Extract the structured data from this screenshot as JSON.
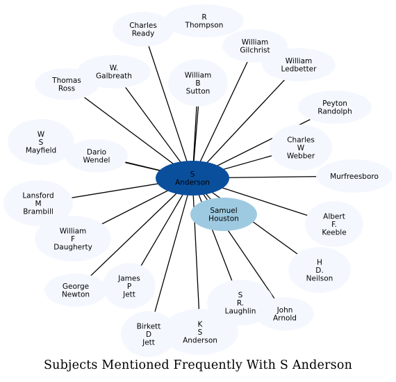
{
  "title": "Subjects Mentioned Frequently With S Anderson",
  "colors": {
    "center_fill": "#0a4f9c",
    "secondary_fill": "#9ecae1",
    "node_fill": "#f4f8fe",
    "edge": "#000000"
  },
  "center": {
    "id": "s-anderson",
    "lines": [
      "S",
      "Anderson"
    ]
  },
  "secondary": {
    "id": "samuel-houston",
    "lines": [
      "Samuel",
      "Houston"
    ]
  },
  "nodes": [
    {
      "id": "r-thompson",
      "lines": [
        "R",
        "Thompson"
      ]
    },
    {
      "id": "charles-ready",
      "lines": [
        "Charles",
        "Ready"
      ]
    },
    {
      "id": "william-gilchrist",
      "lines": [
        "William",
        "Gilchrist"
      ]
    },
    {
      "id": "w-galbreath",
      "lines": [
        "W.",
        "Galbreath"
      ]
    },
    {
      "id": "william-ledbetter",
      "lines": [
        "William",
        "Ledbetter"
      ]
    },
    {
      "id": "thomas-ross",
      "lines": [
        "Thomas",
        "Ross"
      ]
    },
    {
      "id": "william-b-sutton",
      "lines": [
        "William",
        "B",
        "Sutton"
      ]
    },
    {
      "id": "peyton-randolph",
      "lines": [
        "Peyton",
        "Randolph"
      ]
    },
    {
      "id": "w-s-mayfield",
      "lines": [
        "W",
        "S",
        "Mayfield"
      ]
    },
    {
      "id": "charles-w-webber",
      "lines": [
        "Charles",
        "W",
        "Webber"
      ]
    },
    {
      "id": "dario-wendel",
      "lines": [
        "Dario",
        "Wendel"
      ]
    },
    {
      "id": "murfreesboro",
      "lines": [
        "Murfreesboro"
      ]
    },
    {
      "id": "lansford-m-brambill",
      "lines": [
        "Lansford",
        "M",
        "Brambill"
      ]
    },
    {
      "id": "albert-f-keeble",
      "lines": [
        "Albert",
        "F.",
        "Keeble"
      ]
    },
    {
      "id": "william-f-daugherty",
      "lines": [
        "William",
        "F",
        "Daugherty"
      ]
    },
    {
      "id": "h-d-neilson",
      "lines": [
        "H",
        "D.",
        "Neilson"
      ]
    },
    {
      "id": "james-p-jett",
      "lines": [
        "James",
        "P",
        "Jett"
      ]
    },
    {
      "id": "george-newton",
      "lines": [
        "George",
        "Newton"
      ]
    },
    {
      "id": "s-r-laughlin",
      "lines": [
        "S",
        "R.",
        "Laughlin"
      ]
    },
    {
      "id": "john-arnold",
      "lines": [
        "John",
        "Arnold"
      ]
    },
    {
      "id": "birkett-d-jett",
      "lines": [
        "Birkett",
        "D",
        "Jett"
      ]
    },
    {
      "id": "k-s-anderson",
      "lines": [
        "K",
        "S",
        "Anderson"
      ]
    }
  ]
}
